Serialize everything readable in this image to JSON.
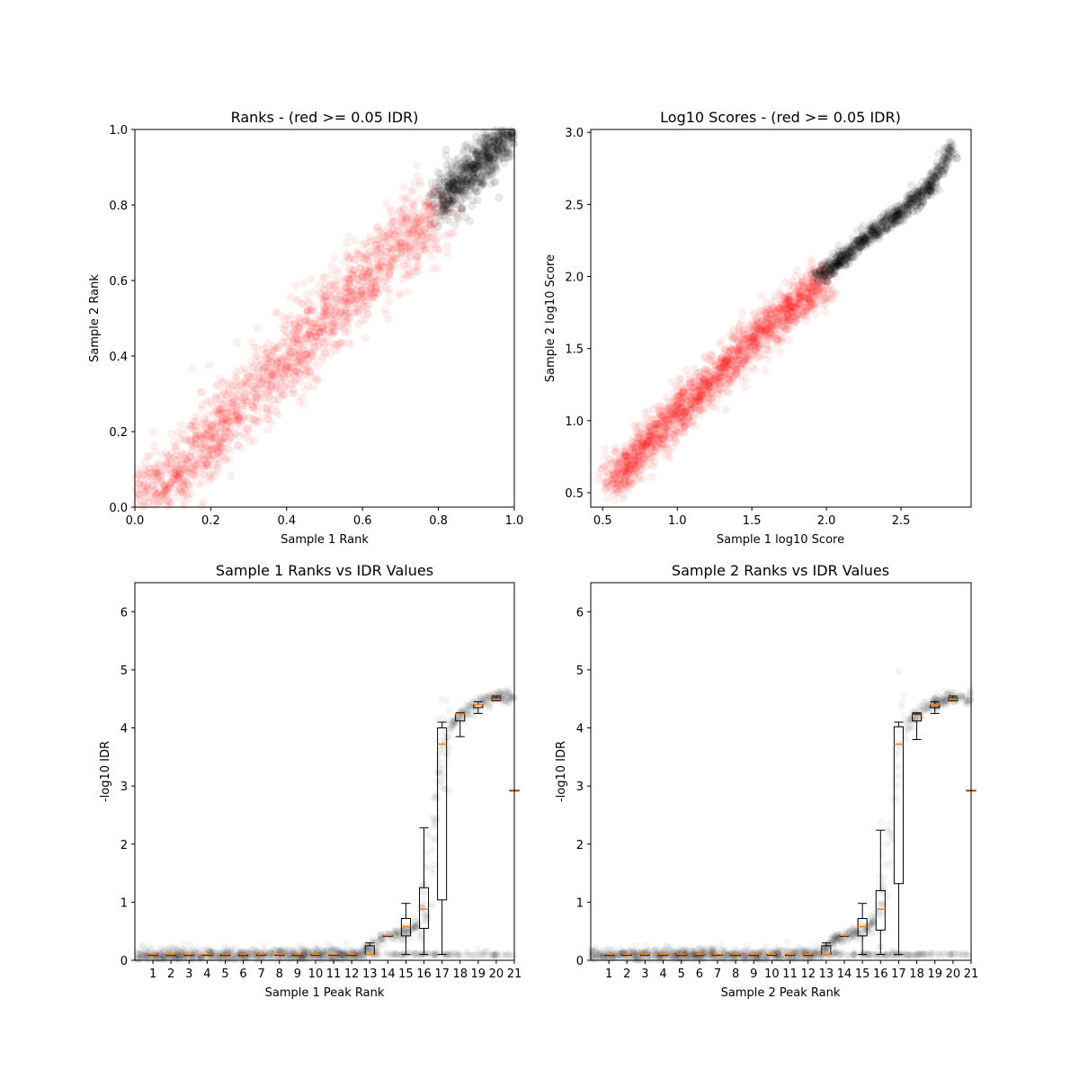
{
  "chart_data": [
    {
      "type": "scatter",
      "title": "Ranks - (red >= 0.05 IDR)",
      "xlabel": "Sample 1 Rank",
      "ylabel": "Sample 2 Rank",
      "xlim": [
        0.0,
        1.0
      ],
      "ylim": [
        0.0,
        1.0
      ],
      "xticks": [
        "0.0",
        "0.2",
        "0.4",
        "0.6",
        "0.8",
        "1.0"
      ],
      "yticks": [
        "0.0",
        "0.2",
        "0.4",
        "0.6",
        "0.8",
        "1.0"
      ],
      "series": [
        {
          "color": "#ff0000",
          "alpha": 0.06,
          "description_points": [
            [
              0.0,
              0.0
            ],
            [
              0.1,
              0.08
            ],
            [
              0.2,
              0.18
            ],
            [
              0.3,
              0.29
            ],
            [
              0.4,
              0.39
            ],
            [
              0.5,
              0.5
            ],
            [
              0.6,
              0.6
            ],
            [
              0.7,
              0.7
            ],
            [
              0.8,
              0.78
            ]
          ],
          "spread": 0.08
        },
        {
          "color": "#000000",
          "alpha": 0.08,
          "description_points": [
            [
              0.8,
              0.8
            ],
            [
              0.85,
              0.85
            ],
            [
              0.9,
              0.9
            ],
            [
              0.95,
              0.95
            ],
            [
              1.0,
              1.0
            ]
          ],
          "spread": 0.05
        }
      ]
    },
    {
      "type": "scatter",
      "title": "Log10 Scores - (red >= 0.05 IDR)",
      "xlabel": "Sample 1 log10 Score",
      "ylabel": "Sample 2 log10 Score",
      "xlim": [
        0.42,
        2.97
      ],
      "ylim": [
        0.4,
        3.02
      ],
      "xticks": [
        "0.5",
        "1.0",
        "1.5",
        "2.0",
        "2.5"
      ],
      "yticks": [
        "0.5",
        "1.0",
        "1.5",
        "2.0",
        "2.5",
        "3.0"
      ],
      "series": [
        {
          "color": "#ff0000",
          "alpha": 0.06,
          "description_points": [
            [
              0.55,
              0.55
            ],
            [
              0.8,
              0.85
            ],
            [
              1.0,
              1.05
            ],
            [
              1.2,
              1.25
            ],
            [
              1.4,
              1.45
            ],
            [
              1.6,
              1.65
            ],
            [
              1.8,
              1.82
            ],
            [
              2.0,
              1.98
            ]
          ],
          "spread": 0.12
        },
        {
          "color": "#000000",
          "alpha": 0.08,
          "description_points": [
            [
              1.95,
              2.0
            ],
            [
              2.1,
              2.12
            ],
            [
              2.3,
              2.3
            ],
            [
              2.5,
              2.45
            ],
            [
              2.7,
              2.62
            ],
            [
              2.85,
              2.9
            ]
          ],
          "spread": 0.05
        }
      ]
    },
    {
      "type": "scatter",
      "title": "Sample 1 Ranks vs IDR Values",
      "xlabel": "Sample 1 Peak Rank",
      "ylabel": "-log10 IDR",
      "xlim": [
        0.0,
        1.0
      ],
      "ylim": [
        0.0,
        6.5
      ],
      "xticks": [
        "1",
        "2",
        "3",
        "4",
        "5",
        "6",
        "7",
        "8",
        "9",
        "10",
        "11",
        "12",
        "13",
        "14",
        "15",
        "16",
        "17",
        "18",
        "19",
        "20",
        "21"
      ],
      "yticks": [
        "0",
        "1",
        "2",
        "3",
        "4",
        "5",
        "6"
      ],
      "boxplot": {
        "positions": [
          1,
          2,
          3,
          4,
          5,
          6,
          7,
          8,
          9,
          10,
          11,
          12,
          13,
          14,
          15,
          16,
          17,
          18,
          19,
          20,
          21
        ],
        "medians": [
          0.1,
          0.1,
          0.1,
          0.1,
          0.1,
          0.1,
          0.1,
          0.1,
          0.1,
          0.1,
          0.1,
          0.1,
          0.1,
          0.43,
          0.58,
          0.88,
          3.72,
          4.24,
          4.4,
          4.49,
          2.93
        ],
        "q1": [
          0.1,
          0.1,
          0.1,
          0.1,
          0.1,
          0.1,
          0.1,
          0.1,
          0.1,
          0.1,
          0.1,
          0.1,
          0.1,
          0.43,
          0.42,
          0.55,
          1.04,
          4.12,
          4.35,
          4.47,
          2.93
        ],
        "q3": [
          0.1,
          0.1,
          0.1,
          0.1,
          0.1,
          0.1,
          0.1,
          0.1,
          0.1,
          0.1,
          0.1,
          0.1,
          0.25,
          0.43,
          0.72,
          1.25,
          4.0,
          4.24,
          4.4,
          4.52,
          2.93
        ],
        "whisker_low": [
          0.1,
          0.1,
          0.1,
          0.1,
          0.1,
          0.1,
          0.1,
          0.1,
          0.1,
          0.1,
          0.1,
          0.1,
          0.1,
          0.43,
          0.1,
          0.1,
          0.1,
          3.85,
          4.25,
          4.47,
          2.93
        ],
        "whisker_high": [
          0.1,
          0.1,
          0.1,
          0.1,
          0.1,
          0.1,
          0.1,
          0.1,
          0.1,
          0.1,
          0.1,
          0.1,
          0.3,
          0.43,
          0.98,
          2.28,
          4.1,
          4.26,
          4.45,
          4.55,
          2.93
        ]
      },
      "curve": [
        [
          0.0,
          0.08
        ],
        [
          0.6,
          0.09
        ],
        [
          0.64,
          0.35
        ],
        [
          0.72,
          0.5
        ],
        [
          0.75,
          0.7
        ],
        [
          0.77,
          1.2
        ],
        [
          0.79,
          2.2
        ],
        [
          0.8,
          3.2
        ],
        [
          0.82,
          3.9
        ],
        [
          0.85,
          4.2
        ],
        [
          0.9,
          4.4
        ],
        [
          0.95,
          4.55
        ],
        [
          0.98,
          4.52
        ]
      ]
    },
    {
      "type": "scatter",
      "title": "Sample 2 Ranks vs IDR Values",
      "xlabel": "Sample 2 Peak Rank",
      "ylabel": "-log10 IDR",
      "xlim": [
        0.0,
        1.0
      ],
      "ylim": [
        0.0,
        6.5
      ],
      "xticks": [
        "1",
        "2",
        "3",
        "4",
        "5",
        "6",
        "7",
        "8",
        "9",
        "10",
        "11",
        "12",
        "13",
        "14",
        "15",
        "16",
        "17",
        "18",
        "19",
        "20",
        "21"
      ],
      "yticks": [
        "0",
        "1",
        "2",
        "3",
        "4",
        "5",
        "6"
      ],
      "boxplot": {
        "positions": [
          1,
          2,
          3,
          4,
          5,
          6,
          7,
          8,
          9,
          10,
          11,
          12,
          13,
          14,
          15,
          16,
          17,
          18,
          19,
          20,
          21
        ],
        "medians": [
          0.1,
          0.1,
          0.1,
          0.1,
          0.1,
          0.1,
          0.1,
          0.1,
          0.1,
          0.1,
          0.1,
          0.1,
          0.1,
          0.43,
          0.58,
          0.88,
          3.72,
          4.22,
          4.4,
          4.49,
          2.93
        ],
        "q1": [
          0.1,
          0.1,
          0.1,
          0.1,
          0.1,
          0.1,
          0.1,
          0.1,
          0.1,
          0.1,
          0.1,
          0.1,
          0.1,
          0.43,
          0.42,
          0.52,
          1.32,
          4.12,
          4.35,
          4.47,
          2.93
        ],
        "q3": [
          0.1,
          0.1,
          0.1,
          0.1,
          0.1,
          0.1,
          0.1,
          0.1,
          0.1,
          0.1,
          0.1,
          0.1,
          0.25,
          0.43,
          0.72,
          1.2,
          4.02,
          4.24,
          4.4,
          4.52,
          2.93
        ],
        "whisker_low": [
          0.1,
          0.1,
          0.1,
          0.1,
          0.1,
          0.1,
          0.1,
          0.1,
          0.1,
          0.1,
          0.1,
          0.1,
          0.1,
          0.43,
          0.1,
          0.1,
          0.1,
          3.8,
          4.25,
          4.47,
          2.93
        ],
        "whisker_high": [
          0.1,
          0.1,
          0.1,
          0.1,
          0.1,
          0.1,
          0.1,
          0.1,
          0.1,
          0.1,
          0.1,
          0.1,
          0.3,
          0.43,
          0.98,
          2.24,
          4.1,
          4.26,
          4.45,
          4.55,
          2.93
        ]
      },
      "curve": [
        [
          0.0,
          0.08
        ],
        [
          0.6,
          0.09
        ],
        [
          0.64,
          0.35
        ],
        [
          0.72,
          0.5
        ],
        [
          0.75,
          0.7
        ],
        [
          0.77,
          1.2
        ],
        [
          0.79,
          2.2
        ],
        [
          0.8,
          3.2
        ],
        [
          0.82,
          3.9
        ],
        [
          0.85,
          4.2
        ],
        [
          0.9,
          4.4
        ],
        [
          0.95,
          4.55
        ],
        [
          0.98,
          4.52
        ]
      ]
    }
  ]
}
